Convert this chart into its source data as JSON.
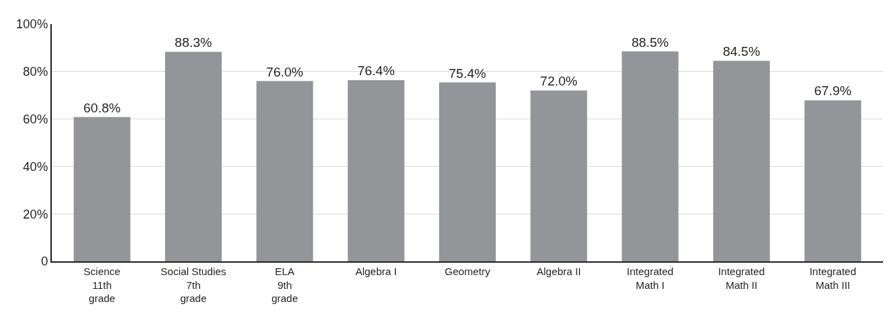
{
  "chart_data": {
    "type": "bar",
    "categories": [
      "Science\n11th\ngrade",
      "Social Studies\n7th\ngrade",
      "ELA\n9th\ngrade",
      "Algebra I",
      "Geometry",
      "Algebra II",
      "Integrated\nMath I",
      "Integrated\nMath II",
      "Integrated\nMath III"
    ],
    "values": [
      60.8,
      88.3,
      76.0,
      76.4,
      75.4,
      72.0,
      88.5,
      84.5,
      67.9
    ],
    "value_labels": [
      "60.8%",
      "88.3%",
      "76.0%",
      "76.4%",
      "75.4%",
      "72.0%",
      "88.5%",
      "84.5%",
      "67.9%"
    ],
    "color": "#939598",
    "ylim": [
      0,
      100
    ],
    "yticks": [
      0,
      {
        "value": 20,
        "label": "20%"
      },
      {
        "value": 40,
        "label": "40%"
      },
      {
        "value": 60,
        "label": "60%"
      },
      {
        "value": 80,
        "label": "80%"
      },
      {
        "value": 100,
        "label": "100%"
      }
    ],
    "grid": "y",
    "legend": false
  }
}
